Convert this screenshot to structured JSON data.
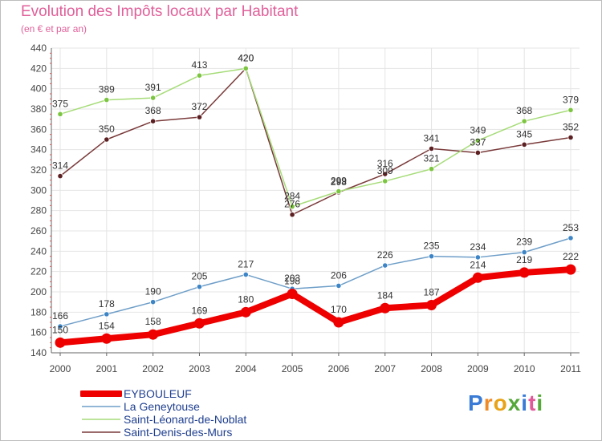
{
  "header": {
    "title": "Evolution des Impôts locaux par Habitant",
    "subtitle": "(en € et par an)"
  },
  "brand": {
    "letters": [
      "P",
      "r",
      "o",
      "x",
      "i",
      "t",
      "i"
    ],
    "colors": [
      "#3a7bd5",
      "#f08a24",
      "#e8a317",
      "#56a83a",
      "#3a7bd5",
      "#e05a9a",
      "#56a83a"
    ]
  },
  "chart_data": {
    "type": "line",
    "title": "Evolution des Impôts locaux par Habitant",
    "subtitle": "(en € et par an)",
    "xlabel": "",
    "ylabel": "",
    "categories": [
      "2000",
      "2001",
      "2002",
      "2003",
      "2004",
      "2005",
      "2006",
      "2007",
      "2008",
      "2009",
      "2010",
      "2011"
    ],
    "ylim": [
      140,
      440
    ],
    "yticks": [
      140,
      160,
      180,
      200,
      220,
      240,
      260,
      280,
      300,
      320,
      340,
      360,
      380,
      400,
      420,
      440
    ],
    "grid": true,
    "legend_position": "bottom-left",
    "series": [
      {
        "name": "EYBOULEUF",
        "color": "#ee0000",
        "emphasis": true,
        "values": [
          150,
          154,
          158,
          169,
          180,
          198,
          170,
          184,
          187,
          214,
          219,
          222
        ]
      },
      {
        "name": "La Geneytouse",
        "color": "#6e9ec8",
        "marker": "#3d85c6",
        "values": [
          166,
          178,
          190,
          205,
          217,
          203,
          206,
          226,
          235,
          234,
          239,
          253
        ]
      },
      {
        "name": "Saint-Léonard-de-Noblat",
        "color": "#a6dc78",
        "marker": "#7cc540",
        "values": [
          375,
          389,
          391,
          413,
          420,
          284,
          299,
          309,
          321,
          349,
          368,
          379
        ]
      },
      {
        "name": "Saint-Denis-des-Murs",
        "color": "#7a3a3a",
        "marker": "#5c1f22",
        "values": [
          314,
          350,
          368,
          372,
          420,
          276,
          298,
          316,
          341,
          337,
          345,
          352
        ]
      }
    ]
  }
}
